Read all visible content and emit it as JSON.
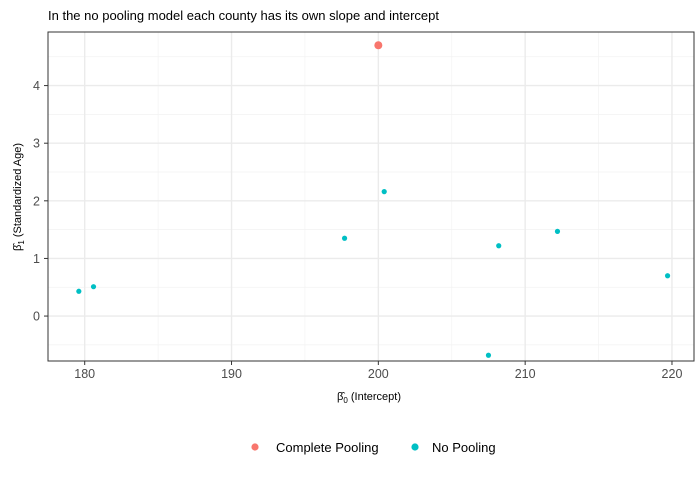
{
  "chart_data": {
    "type": "scatter",
    "title": "In the no pooling model each county has its own slope and intercept",
    "xlabel_symbol": "β̂",
    "xlabel_sub": "0",
    "xlabel_text": " (Intercept)",
    "ylabel_symbol": "β̂",
    "ylabel_sub": "1",
    "ylabel_text": " (Standardized Age)",
    "xlim": [
      177.5,
      221.5
    ],
    "ylim": [
      -0.78,
      4.93
    ],
    "x_ticks": [
      180,
      190,
      200,
      210,
      220
    ],
    "y_ticks": [
      0,
      1,
      2,
      3,
      4
    ],
    "grid": true,
    "legend_position": "bottom",
    "series": [
      {
        "name": "Complete Pooling",
        "color": "#F8766D",
        "points": [
          {
            "x": 200.0,
            "y": 4.7
          }
        ]
      },
      {
        "name": "No Pooling",
        "color": "#00BFC4",
        "points": [
          {
            "x": 179.6,
            "y": 0.43
          },
          {
            "x": 180.6,
            "y": 0.51
          },
          {
            "x": 197.7,
            "y": 1.35
          },
          {
            "x": 200.4,
            "y": 2.16
          },
          {
            "x": 207.5,
            "y": -0.68
          },
          {
            "x": 208.2,
            "y": 1.22
          },
          {
            "x": 212.2,
            "y": 1.47
          },
          {
            "x": 219.7,
            "y": 0.7
          }
        ]
      }
    ]
  }
}
